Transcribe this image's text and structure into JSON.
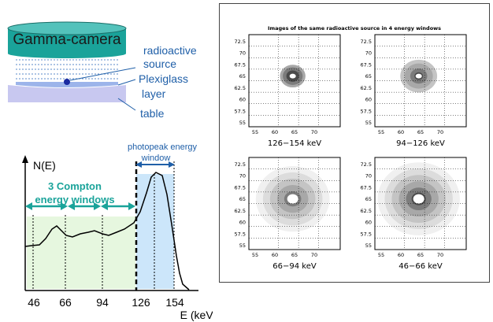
{
  "setup": {
    "camera_label": "Gamma-camera",
    "source_label_line1": "radioactive",
    "source_label_line2": "source",
    "plexi_label_line1": "Plexiglass",
    "plexi_label_line2": "layer",
    "table_label": "table"
  },
  "spectrum": {
    "ylabel": "N(E)",
    "xlabel": "E (keV)",
    "compton_label_line1": "3 Compton",
    "compton_label_line2": "energy windows",
    "photopeak_label_line1": "photopeak energy",
    "photopeak_label_line2": "window",
    "ticks": [
      "46",
      "66",
      "94",
      "126",
      "154"
    ]
  },
  "images_panel": {
    "title": "Images of the same radioactive source in 4 energy windows",
    "y_ticks": [
      "72.5",
      "70",
      "67.5",
      "65",
      "62.5",
      "60",
      "57.5",
      "55"
    ],
    "x_ticks": [
      "55",
      "60",
      "65",
      "70"
    ],
    "captions": [
      "126−154 keV",
      "94−126 keV",
      "66−94 keV",
      "46−66 keV"
    ]
  },
  "colors": {
    "camera_fill": "#1aa39a",
    "blue_text": "#1f5fa8",
    "teal_arrow": "#1aa39a",
    "compton_fill": "#e6f7df",
    "photopeak_fill": "#cce6fa",
    "table_fill": "#c8c8f0"
  }
}
